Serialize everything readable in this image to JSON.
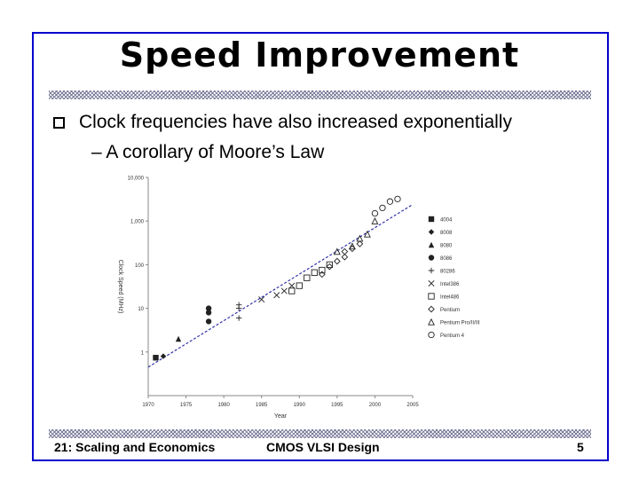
{
  "slide": {
    "title": "Speed Improvement",
    "bullet": "Clock frequencies have also increased exponentially",
    "subbullet": "– A corollary of Moore’s Law",
    "footer_left": "21: Scaling and Economics",
    "footer_center": "CMOS VLSI Design",
    "footer_right": "5",
    "frame_color": "#0000cc"
  },
  "chart_data": {
    "type": "scatter",
    "xlabel": "Year",
    "ylabel": "Clock Speed (MHz)",
    "xlim": [
      1970,
      2005
    ],
    "ylim": [
      0.1,
      10000
    ],
    "yscale": "log",
    "x_ticks": [
      "1970",
      "1975",
      "1980",
      "1985",
      "1990",
      "1995",
      "2000",
      "2005"
    ],
    "y_ticks": [
      "1",
      "10",
      "100",
      "1,000",
      "10,000"
    ],
    "trend_line": {
      "from": [
        1970,
        0.45
      ],
      "to": [
        2005,
        2400
      ],
      "color": "#3333aa",
      "style": "dashed"
    },
    "legend_position": "right",
    "series": [
      {
        "name": "4004",
        "marker": "square-filled",
        "points": [
          [
            1971,
            0.74
          ]
        ]
      },
      {
        "name": "8008",
        "marker": "diamond-filled",
        "points": [
          [
            1972,
            0.8
          ]
        ]
      },
      {
        "name": "8080",
        "marker": "triangle-filled",
        "points": [
          [
            1974,
            2
          ]
        ]
      },
      {
        "name": "8086",
        "marker": "circle-filled",
        "points": [
          [
            1978,
            5
          ],
          [
            1978,
            8
          ],
          [
            1978,
            10
          ]
        ]
      },
      {
        "name": "80286",
        "marker": "plus",
        "points": [
          [
            1982,
            6
          ],
          [
            1982,
            10
          ],
          [
            1982,
            12
          ]
        ]
      },
      {
        "name": "Intel386",
        "marker": "x",
        "points": [
          [
            1985,
            16
          ],
          [
            1987,
            20
          ],
          [
            1988,
            25
          ],
          [
            1989,
            33
          ]
        ]
      },
      {
        "name": "Intel486",
        "marker": "square-open",
        "points": [
          [
            1989,
            25
          ],
          [
            1990,
            33
          ],
          [
            1991,
            50
          ],
          [
            1992,
            66
          ],
          [
            1993,
            75
          ],
          [
            1994,
            100
          ]
        ]
      },
      {
        "name": "Pentium",
        "marker": "diamond-open",
        "points": [
          [
            1993,
            60
          ],
          [
            1994,
            90
          ],
          [
            1995,
            120
          ],
          [
            1996,
            150
          ],
          [
            1996,
            200
          ],
          [
            1997,
            233
          ],
          [
            1998,
            300
          ]
        ]
      },
      {
        "name": "Pentium Pro/II/III",
        "marker": "triangle-open",
        "points": [
          [
            1995,
            200
          ],
          [
            1997,
            266
          ],
          [
            1998,
            400
          ],
          [
            1999,
            500
          ],
          [
            2000,
            1000
          ]
        ]
      },
      {
        "name": "Pentium 4",
        "marker": "circle-open",
        "points": [
          [
            2000,
            1500
          ],
          [
            2001,
            2000
          ],
          [
            2002,
            2800
          ],
          [
            2003,
            3200
          ]
        ]
      }
    ]
  }
}
